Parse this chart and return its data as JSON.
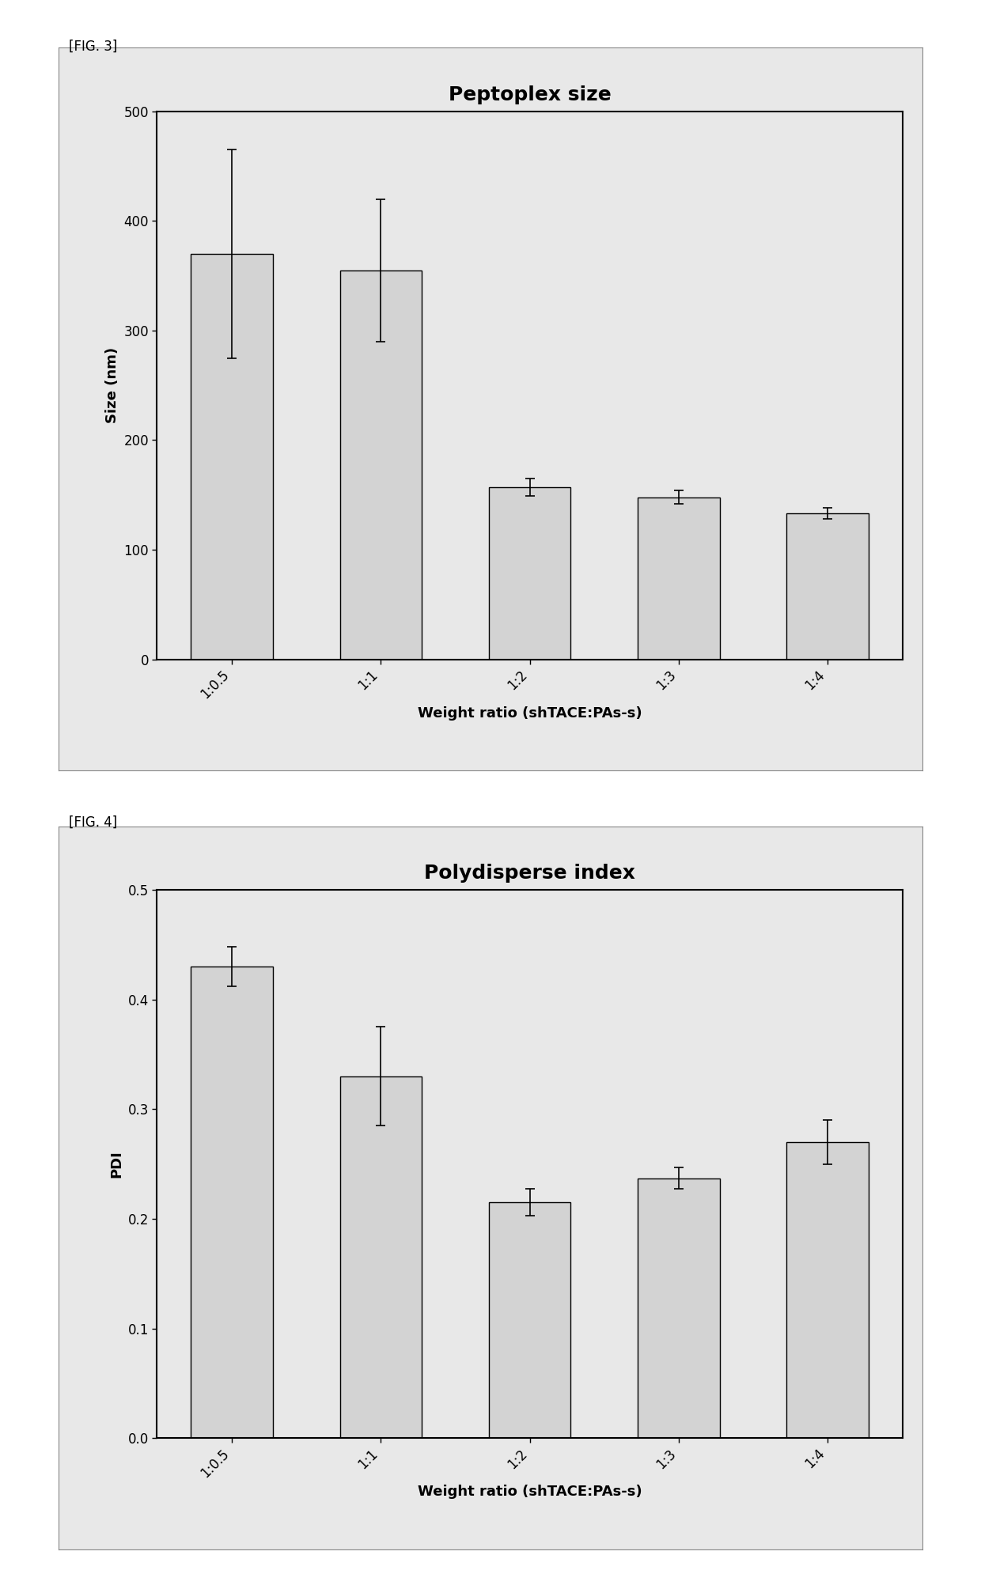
{
  "fig3": {
    "title": "Peptoplex size",
    "xlabel": "Weight ratio (shTACE:PAs-s)",
    "ylabel": "Size (nm)",
    "categories": [
      "1:0.5",
      "1:1",
      "1:2",
      "1:3",
      "1:4"
    ],
    "values": [
      370,
      355,
      157,
      148,
      133
    ],
    "errors": [
      95,
      65,
      8,
      6,
      5
    ],
    "ylim": [
      0,
      500
    ],
    "yticks": [
      0,
      100,
      200,
      300,
      400,
      500
    ],
    "bar_color": "#d3d3d3",
    "bar_edgecolor": "#000000",
    "title_fontsize": 18,
    "label_fontsize": 13,
    "tick_fontsize": 12
  },
  "fig4": {
    "title": "Polydisperse index",
    "xlabel": "Weight ratio (shTACE:PAs-s)",
    "ylabel": "PDI",
    "categories": [
      "1:0.5",
      "1:1",
      "1:2",
      "1:3",
      "1:4"
    ],
    "values": [
      0.43,
      0.33,
      0.215,
      0.237,
      0.27
    ],
    "errors": [
      0.018,
      0.045,
      0.012,
      0.01,
      0.02
    ],
    "ylim": [
      0.0,
      0.5
    ],
    "yticks": [
      0.0,
      0.1,
      0.2,
      0.3,
      0.4,
      0.5
    ],
    "bar_color": "#d3d3d3",
    "bar_edgecolor": "#000000",
    "title_fontsize": 18,
    "label_fontsize": 13,
    "tick_fontsize": 12
  },
  "fig_label3": "[FIG. 3]",
  "fig_label4": "[FIG. 4]",
  "page_bg": "#ffffff",
  "panel_bg": "#e8e8e8"
}
